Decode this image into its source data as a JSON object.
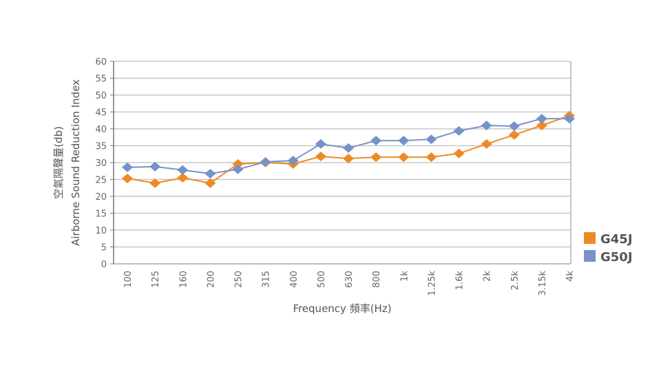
{
  "chart_data": {
    "type": "line",
    "title": "",
    "xlabel": "Frequency 頻率(Hz)",
    "ylabel_line1": "空氣隔聲量(db)",
    "ylabel_line2": "Airborne Sound Reduction Index",
    "ylim": [
      0,
      60
    ],
    "yticks": [
      0,
      5,
      10,
      15,
      20,
      25,
      30,
      35,
      40,
      45,
      50,
      55,
      60
    ],
    "grid": true,
    "legend_position": "right",
    "categories": [
      "100",
      "125",
      "160",
      "200",
      "250",
      "315",
      "400",
      "500",
      "630",
      "800",
      "1k",
      "1.25k",
      "1.6k",
      "2k",
      "2.5k",
      "3.15k",
      "4k"
    ],
    "series": [
      {
        "name": "G45J",
        "color": "#EE8A23",
        "values": [
          25.3,
          23.9,
          25.5,
          23.9,
          29.6,
          30.0,
          29.6,
          31.8,
          31.2,
          31.6,
          31.6,
          31.6,
          32.7,
          35.5,
          38.2,
          41.0,
          43.9
        ]
      },
      {
        "name": "G50J",
        "color": "#7791CB",
        "values": [
          28.6,
          28.8,
          27.8,
          26.7,
          28.0,
          30.2,
          30.6,
          35.5,
          34.3,
          36.5,
          36.5,
          36.9,
          39.4,
          41.0,
          40.8,
          43.0,
          43.0
        ]
      }
    ]
  }
}
